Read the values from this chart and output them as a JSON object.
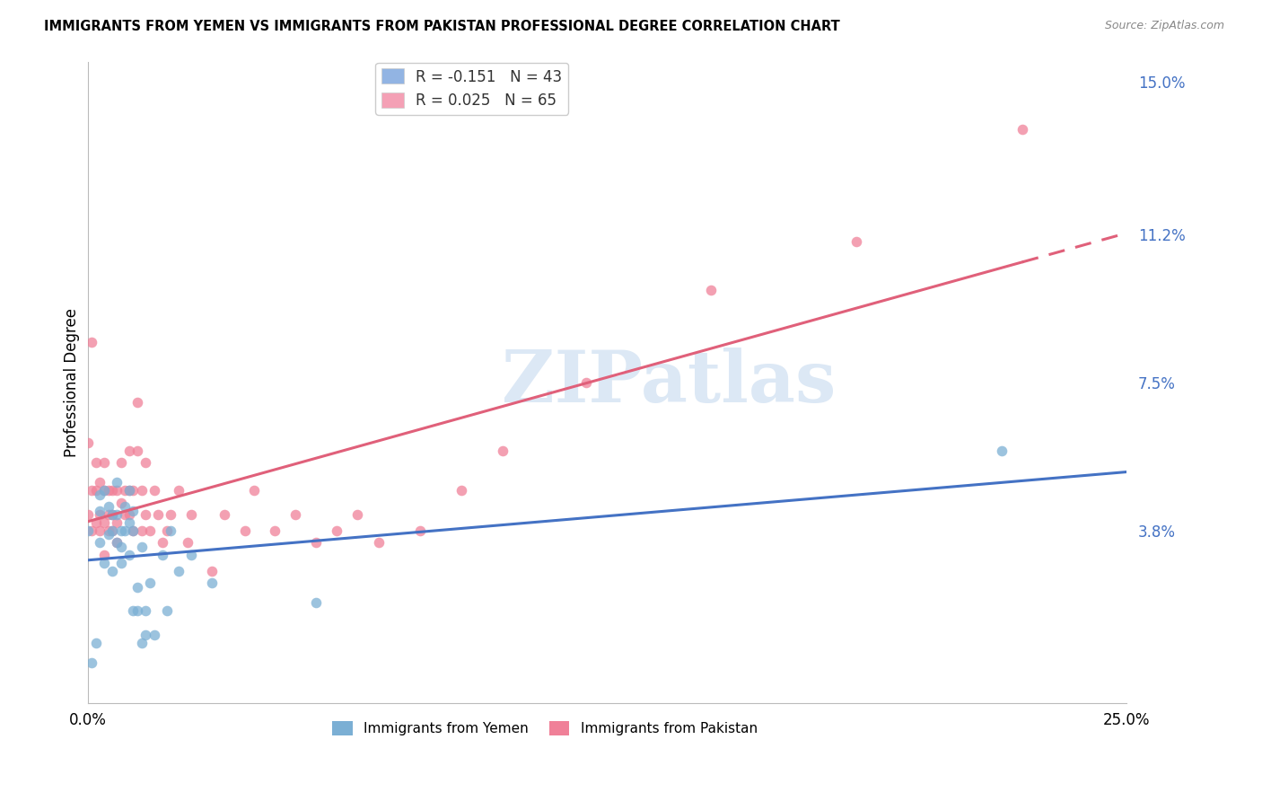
{
  "title": "IMMIGRANTS FROM YEMEN VS IMMIGRANTS FROM PAKISTAN PROFESSIONAL DEGREE CORRELATION CHART",
  "source": "Source: ZipAtlas.com",
  "ylabel": "Professional Degree",
  "xlim": [
    0.0,
    0.25
  ],
  "ylim": [
    -0.005,
    0.155
  ],
  "yticks_right_pos": [
    0.038,
    0.075,
    0.112,
    0.15
  ],
  "yticks_right_labels": [
    "3.8%",
    "7.5%",
    "11.2%",
    "15.0%"
  ],
  "xtick_positions": [
    0.0,
    0.05,
    0.1,
    0.15,
    0.2,
    0.25
  ],
  "xtick_labels": [
    "0.0%",
    "",
    "",
    "",
    "",
    "25.0%"
  ],
  "legend1_R": "-0.151",
  "legend1_N": "43",
  "legend2_R": "0.025",
  "legend2_N": "65",
  "legend1_color": "#92b4e3",
  "legend2_color": "#f4a0b5",
  "watermark_text": "ZIPatlas",
  "watermark_color": "#dce8f5",
  "background_color": "#ffffff",
  "grid_color": "#dddddd",
  "yemen_color": "#7bafd4",
  "pakistan_color": "#f08098",
  "trend_yemen_color": "#4472c4",
  "trend_pakistan_color": "#e0607a",
  "yemen_x": [
    0.0,
    0.001,
    0.002,
    0.003,
    0.003,
    0.003,
    0.004,
    0.004,
    0.005,
    0.005,
    0.006,
    0.006,
    0.006,
    0.007,
    0.007,
    0.007,
    0.008,
    0.008,
    0.008,
    0.009,
    0.009,
    0.01,
    0.01,
    0.01,
    0.011,
    0.011,
    0.011,
    0.012,
    0.012,
    0.013,
    0.013,
    0.014,
    0.014,
    0.015,
    0.016,
    0.018,
    0.019,
    0.02,
    0.022,
    0.025,
    0.03,
    0.055,
    0.22
  ],
  "yemen_y": [
    0.038,
    0.005,
    0.01,
    0.047,
    0.035,
    0.043,
    0.048,
    0.03,
    0.044,
    0.037,
    0.042,
    0.038,
    0.028,
    0.05,
    0.042,
    0.035,
    0.038,
    0.034,
    0.03,
    0.044,
    0.038,
    0.048,
    0.04,
    0.032,
    0.038,
    0.018,
    0.043,
    0.024,
    0.018,
    0.034,
    0.01,
    0.018,
    0.012,
    0.025,
    0.012,
    0.032,
    0.018,
    0.038,
    0.028,
    0.032,
    0.025,
    0.02,
    0.058
  ],
  "pakistan_x": [
    0.0,
    0.0,
    0.001,
    0.001,
    0.001,
    0.002,
    0.002,
    0.002,
    0.003,
    0.003,
    0.003,
    0.004,
    0.004,
    0.004,
    0.004,
    0.005,
    0.005,
    0.005,
    0.006,
    0.006,
    0.006,
    0.007,
    0.007,
    0.007,
    0.008,
    0.008,
    0.009,
    0.009,
    0.01,
    0.01,
    0.01,
    0.011,
    0.011,
    0.012,
    0.012,
    0.013,
    0.013,
    0.014,
    0.014,
    0.015,
    0.016,
    0.017,
    0.018,
    0.019,
    0.02,
    0.022,
    0.024,
    0.025,
    0.03,
    0.033,
    0.038,
    0.04,
    0.045,
    0.05,
    0.055,
    0.06,
    0.065,
    0.07,
    0.08,
    0.09,
    0.1,
    0.12,
    0.15,
    0.185,
    0.225
  ],
  "pakistan_y": [
    0.06,
    0.042,
    0.085,
    0.048,
    0.038,
    0.048,
    0.055,
    0.04,
    0.05,
    0.042,
    0.038,
    0.055,
    0.048,
    0.04,
    0.032,
    0.048,
    0.042,
    0.038,
    0.048,
    0.042,
    0.038,
    0.048,
    0.04,
    0.035,
    0.055,
    0.045,
    0.048,
    0.042,
    0.048,
    0.058,
    0.042,
    0.048,
    0.038,
    0.07,
    0.058,
    0.048,
    0.038,
    0.055,
    0.042,
    0.038,
    0.048,
    0.042,
    0.035,
    0.038,
    0.042,
    0.048,
    0.035,
    0.042,
    0.028,
    0.042,
    0.038,
    0.048,
    0.038,
    0.042,
    0.035,
    0.038,
    0.042,
    0.035,
    0.038,
    0.048,
    0.058,
    0.075,
    0.098,
    0.11,
    0.138
  ]
}
